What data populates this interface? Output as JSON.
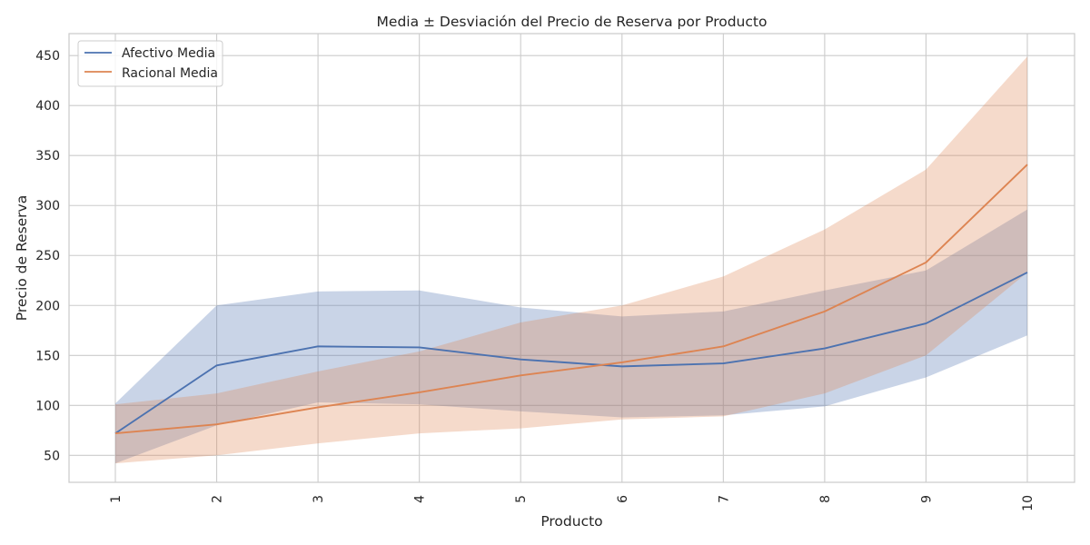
{
  "chart_data": {
    "type": "line",
    "title": "Media ± Desviación del Precio de Reserva por Producto",
    "xlabel": "Producto",
    "ylabel": "Precio de Reserva",
    "x": [
      1,
      2,
      3,
      4,
      5,
      6,
      7,
      8,
      9,
      10
    ],
    "x_tick_labels": [
      "1",
      "2",
      "3",
      "4",
      "5",
      "6",
      "7",
      "8",
      "9",
      "10"
    ],
    "x_tick_rotation": "vertical",
    "y_ticks": [
      50,
      100,
      150,
      200,
      250,
      300,
      350,
      400,
      450
    ],
    "y_tick_labels": [
      "50",
      "100",
      "150",
      "200",
      "250",
      "300",
      "350",
      "400",
      "450"
    ],
    "ylim": [
      23,
      472
    ],
    "grid": true,
    "legend_position": "upper-left",
    "series": [
      {
        "name": "Afectivo Media",
        "color": "#4c72b0",
        "band_color": "#4c72b0",
        "mean": [
          72,
          140,
          159,
          158,
          146,
          139,
          142,
          157,
          182,
          233
        ],
        "lower": [
          42,
          80,
          103,
          101,
          94,
          88,
          90,
          99,
          128,
          170
        ],
        "upper": [
          102,
          200,
          214,
          215,
          198,
          189,
          194,
          215,
          235,
          296
        ]
      },
      {
        "name": "Racional Media",
        "color": "#dd8452",
        "band_color": "#dd8452",
        "mean": [
          72,
          81,
          98,
          113,
          130,
          143,
          159,
          194,
          243,
          341
        ],
        "lower": [
          42,
          50,
          62,
          72,
          77,
          86,
          89,
          112,
          150,
          233
        ],
        "upper": [
          101,
          112,
          134,
          154,
          183,
          200,
          229,
          276,
          336,
          449
        ]
      }
    ]
  }
}
